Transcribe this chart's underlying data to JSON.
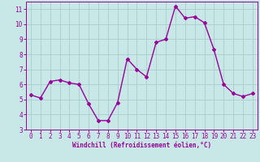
{
  "x": [
    0,
    1,
    2,
    3,
    4,
    5,
    6,
    7,
    8,
    9,
    10,
    11,
    12,
    13,
    14,
    15,
    16,
    17,
    18,
    19,
    20,
    21,
    22,
    23
  ],
  "y": [
    5.3,
    5.1,
    6.2,
    6.3,
    6.1,
    6.0,
    4.7,
    3.6,
    3.6,
    4.8,
    7.7,
    7.0,
    6.5,
    8.8,
    9.0,
    11.2,
    10.4,
    10.5,
    10.1,
    8.3,
    6.0,
    5.4,
    5.2,
    5.4
  ],
  "line_color": "#990099",
  "marker": "D",
  "marker_size": 2,
  "bg_color": "#c8e8e8",
  "grid_color": "#aacccc",
  "xlabel": "Windchill (Refroidissement éolien,°C)",
  "xlim": [
    -0.5,
    23.5
  ],
  "ylim": [
    3,
    11.5
  ],
  "yticks": [
    3,
    4,
    5,
    6,
    7,
    8,
    9,
    10,
    11
  ],
  "xticks": [
    0,
    1,
    2,
    3,
    4,
    5,
    6,
    7,
    8,
    9,
    10,
    11,
    12,
    13,
    14,
    15,
    16,
    17,
    18,
    19,
    20,
    21,
    22,
    23
  ],
  "label_fontsize": 5.5,
  "tick_fontsize": 5.5,
  "line_width": 1.0
}
